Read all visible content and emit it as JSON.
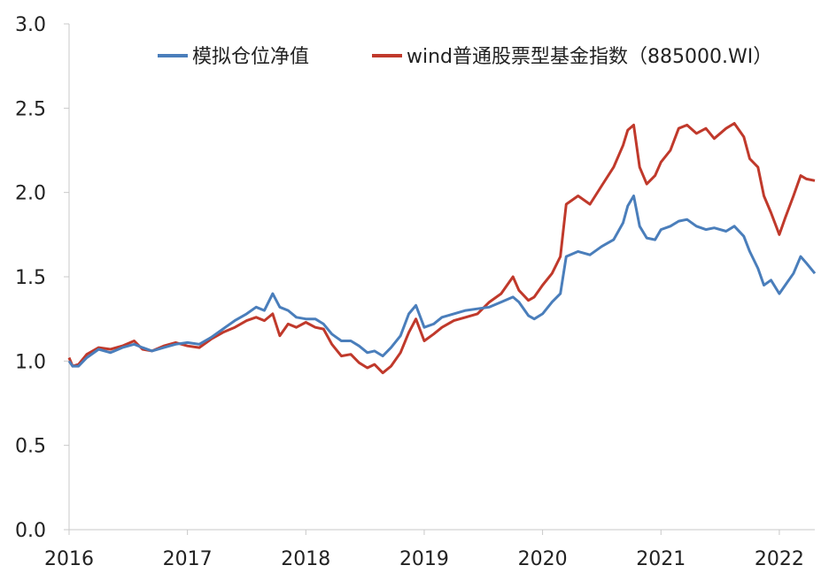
{
  "chart_data": {
    "type": "line",
    "title": "",
    "xlabel": "",
    "ylabel": "",
    "xlim": [
      2016.0,
      2022.3
    ],
    "ylim": [
      0,
      3.0
    ],
    "grid": false,
    "legend_position": "top",
    "x_ticks": [
      "2016",
      "2017",
      "2018",
      "2019",
      "2020",
      "2021",
      "2022"
    ],
    "y_ticks": [
      "0.0",
      "0.5",
      "1.0",
      "1.5",
      "2.0",
      "2.5",
      "3.0"
    ],
    "series": [
      {
        "name": "模拟仓位净值",
        "color": "#4a7ebb",
        "points": [
          [
            2016.0,
            1.0
          ],
          [
            2016.03,
            0.97
          ],
          [
            2016.08,
            0.97
          ],
          [
            2016.15,
            1.02
          ],
          [
            2016.25,
            1.07
          ],
          [
            2016.35,
            1.05
          ],
          [
            2016.45,
            1.08
          ],
          [
            2016.55,
            1.1
          ],
          [
            2016.62,
            1.08
          ],
          [
            2016.7,
            1.06
          ],
          [
            2016.8,
            1.08
          ],
          [
            2016.9,
            1.1
          ],
          [
            2017.0,
            1.11
          ],
          [
            2017.1,
            1.1
          ],
          [
            2017.2,
            1.14
          ],
          [
            2017.3,
            1.19
          ],
          [
            2017.4,
            1.24
          ],
          [
            2017.5,
            1.28
          ],
          [
            2017.58,
            1.32
          ],
          [
            2017.65,
            1.3
          ],
          [
            2017.72,
            1.4
          ],
          [
            2017.78,
            1.32
          ],
          [
            2017.85,
            1.3
          ],
          [
            2017.92,
            1.26
          ],
          [
            2018.0,
            1.25
          ],
          [
            2018.08,
            1.25
          ],
          [
            2018.15,
            1.22
          ],
          [
            2018.22,
            1.16
          ],
          [
            2018.3,
            1.12
          ],
          [
            2018.38,
            1.12
          ],
          [
            2018.45,
            1.09
          ],
          [
            2018.52,
            1.05
          ],
          [
            2018.58,
            1.06
          ],
          [
            2018.65,
            1.03
          ],
          [
            2018.72,
            1.08
          ],
          [
            2018.8,
            1.15
          ],
          [
            2018.87,
            1.28
          ],
          [
            2018.93,
            1.33
          ],
          [
            2019.0,
            1.2
          ],
          [
            2019.08,
            1.22
          ],
          [
            2019.15,
            1.26
          ],
          [
            2019.25,
            1.28
          ],
          [
            2019.35,
            1.3
          ],
          [
            2019.45,
            1.31
          ],
          [
            2019.55,
            1.32
          ],
          [
            2019.65,
            1.35
          ],
          [
            2019.75,
            1.38
          ],
          [
            2019.8,
            1.35
          ],
          [
            2019.88,
            1.27
          ],
          [
            2019.93,
            1.25
          ],
          [
            2020.0,
            1.28
          ],
          [
            2020.08,
            1.35
          ],
          [
            2020.15,
            1.4
          ],
          [
            2020.2,
            1.62
          ],
          [
            2020.3,
            1.65
          ],
          [
            2020.4,
            1.63
          ],
          [
            2020.5,
            1.68
          ],
          [
            2020.6,
            1.72
          ],
          [
            2020.68,
            1.82
          ],
          [
            2020.72,
            1.92
          ],
          [
            2020.77,
            1.98
          ],
          [
            2020.82,
            1.8
          ],
          [
            2020.88,
            1.73
          ],
          [
            2020.95,
            1.72
          ],
          [
            2021.0,
            1.78
          ],
          [
            2021.08,
            1.8
          ],
          [
            2021.15,
            1.83
          ],
          [
            2021.22,
            1.84
          ],
          [
            2021.3,
            1.8
          ],
          [
            2021.38,
            1.78
          ],
          [
            2021.45,
            1.79
          ],
          [
            2021.55,
            1.77
          ],
          [
            2021.62,
            1.8
          ],
          [
            2021.7,
            1.74
          ],
          [
            2021.75,
            1.65
          ],
          [
            2021.82,
            1.55
          ],
          [
            2021.87,
            1.45
          ],
          [
            2021.93,
            1.48
          ],
          [
            2022.0,
            1.4
          ],
          [
            2022.05,
            1.45
          ],
          [
            2022.12,
            1.52
          ],
          [
            2022.18,
            1.62
          ],
          [
            2022.23,
            1.58
          ],
          [
            2022.3,
            1.52
          ]
        ]
      },
      {
        "name": "wind普通股票型基金指数（885000.WI）",
        "color": "#c0392b",
        "points": [
          [
            2016.0,
            1.02
          ],
          [
            2016.03,
            0.97
          ],
          [
            2016.08,
            0.98
          ],
          [
            2016.15,
            1.04
          ],
          [
            2016.25,
            1.08
          ],
          [
            2016.35,
            1.07
          ],
          [
            2016.45,
            1.09
          ],
          [
            2016.55,
            1.12
          ],
          [
            2016.62,
            1.07
          ],
          [
            2016.7,
            1.06
          ],
          [
            2016.8,
            1.09
          ],
          [
            2016.9,
            1.11
          ],
          [
            2017.0,
            1.09
          ],
          [
            2017.1,
            1.08
          ],
          [
            2017.2,
            1.13
          ],
          [
            2017.3,
            1.17
          ],
          [
            2017.4,
            1.2
          ],
          [
            2017.5,
            1.24
          ],
          [
            2017.58,
            1.26
          ],
          [
            2017.65,
            1.24
          ],
          [
            2017.72,
            1.28
          ],
          [
            2017.78,
            1.15
          ],
          [
            2017.85,
            1.22
          ],
          [
            2017.92,
            1.2
          ],
          [
            2018.0,
            1.23
          ],
          [
            2018.08,
            1.2
          ],
          [
            2018.15,
            1.19
          ],
          [
            2018.22,
            1.1
          ],
          [
            2018.3,
            1.03
          ],
          [
            2018.38,
            1.04
          ],
          [
            2018.45,
            0.99
          ],
          [
            2018.52,
            0.96
          ],
          [
            2018.58,
            0.98
          ],
          [
            2018.65,
            0.93
          ],
          [
            2018.72,
            0.97
          ],
          [
            2018.8,
            1.05
          ],
          [
            2018.87,
            1.17
          ],
          [
            2018.93,
            1.25
          ],
          [
            2019.0,
            1.12
          ],
          [
            2019.08,
            1.16
          ],
          [
            2019.15,
            1.2
          ],
          [
            2019.25,
            1.24
          ],
          [
            2019.35,
            1.26
          ],
          [
            2019.45,
            1.28
          ],
          [
            2019.55,
            1.35
          ],
          [
            2019.65,
            1.4
          ],
          [
            2019.75,
            1.5
          ],
          [
            2019.8,
            1.42
          ],
          [
            2019.88,
            1.36
          ],
          [
            2019.93,
            1.38
          ],
          [
            2020.0,
            1.45
          ],
          [
            2020.08,
            1.52
          ],
          [
            2020.15,
            1.62
          ],
          [
            2020.2,
            1.93
          ],
          [
            2020.3,
            1.98
          ],
          [
            2020.4,
            1.93
          ],
          [
            2020.5,
            2.04
          ],
          [
            2020.6,
            2.15
          ],
          [
            2020.68,
            2.28
          ],
          [
            2020.72,
            2.37
          ],
          [
            2020.77,
            2.4
          ],
          [
            2020.82,
            2.15
          ],
          [
            2020.88,
            2.05
          ],
          [
            2020.95,
            2.1
          ],
          [
            2021.0,
            2.18
          ],
          [
            2021.08,
            2.25
          ],
          [
            2021.15,
            2.38
          ],
          [
            2021.22,
            2.4
          ],
          [
            2021.3,
            2.35
          ],
          [
            2021.38,
            2.38
          ],
          [
            2021.45,
            2.32
          ],
          [
            2021.55,
            2.38
          ],
          [
            2021.62,
            2.41
          ],
          [
            2021.7,
            2.33
          ],
          [
            2021.75,
            2.2
          ],
          [
            2021.82,
            2.15
          ],
          [
            2021.87,
            1.98
          ],
          [
            2021.93,
            1.88
          ],
          [
            2022.0,
            1.75
          ],
          [
            2022.05,
            1.85
          ],
          [
            2022.12,
            1.98
          ],
          [
            2022.18,
            2.1
          ],
          [
            2022.23,
            2.08
          ],
          [
            2022.3,
            2.07
          ]
        ]
      }
    ]
  }
}
